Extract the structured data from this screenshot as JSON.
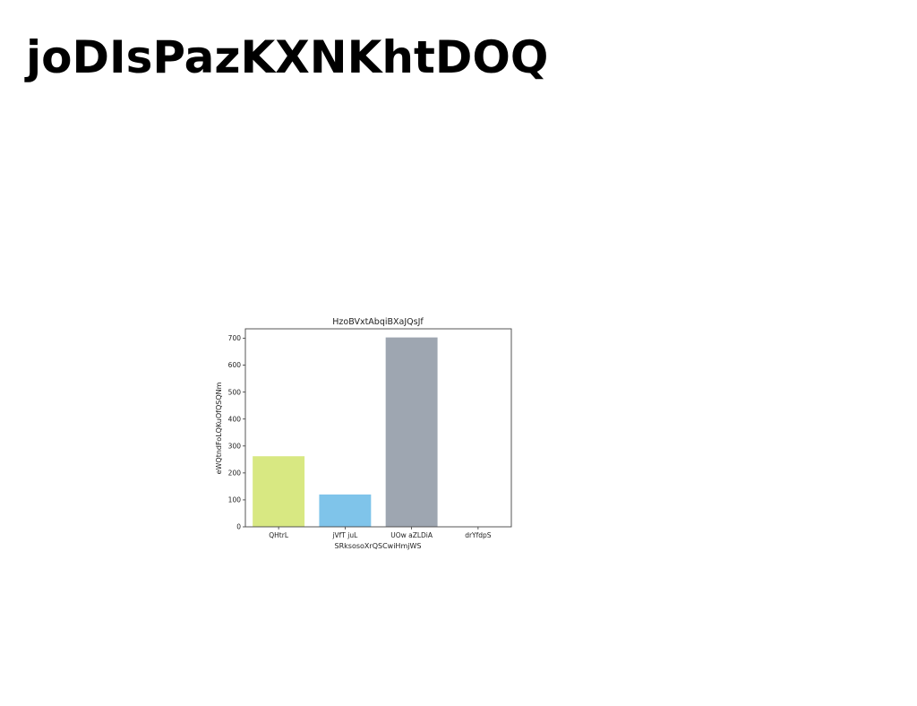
{
  "page": {
    "title": "joDIsPazKXNKhtDOQ"
  },
  "chart_data": {
    "type": "bar",
    "title": "HzoBVxtAbqiBXaJQsJf",
    "xlabel": "SRksosoXrQSCwiHmjWS",
    "ylabel": "eWQtndFoLQKuOfQSQNm",
    "categories": [
      "QHtrL",
      "jVfT juL",
      "UOw aZLDiA",
      "drYfdpS"
    ],
    "values": [
      262,
      120,
      703,
      0
    ],
    "colors": [
      "#d8e882",
      "#7fc4ea",
      "#9ea6b1",
      "#cccccc"
    ],
    "ylim": [
      0,
      735
    ],
    "yticks": [
      0,
      100,
      200,
      300,
      400,
      500,
      600,
      700
    ],
    "grid": false,
    "legend": "none"
  }
}
